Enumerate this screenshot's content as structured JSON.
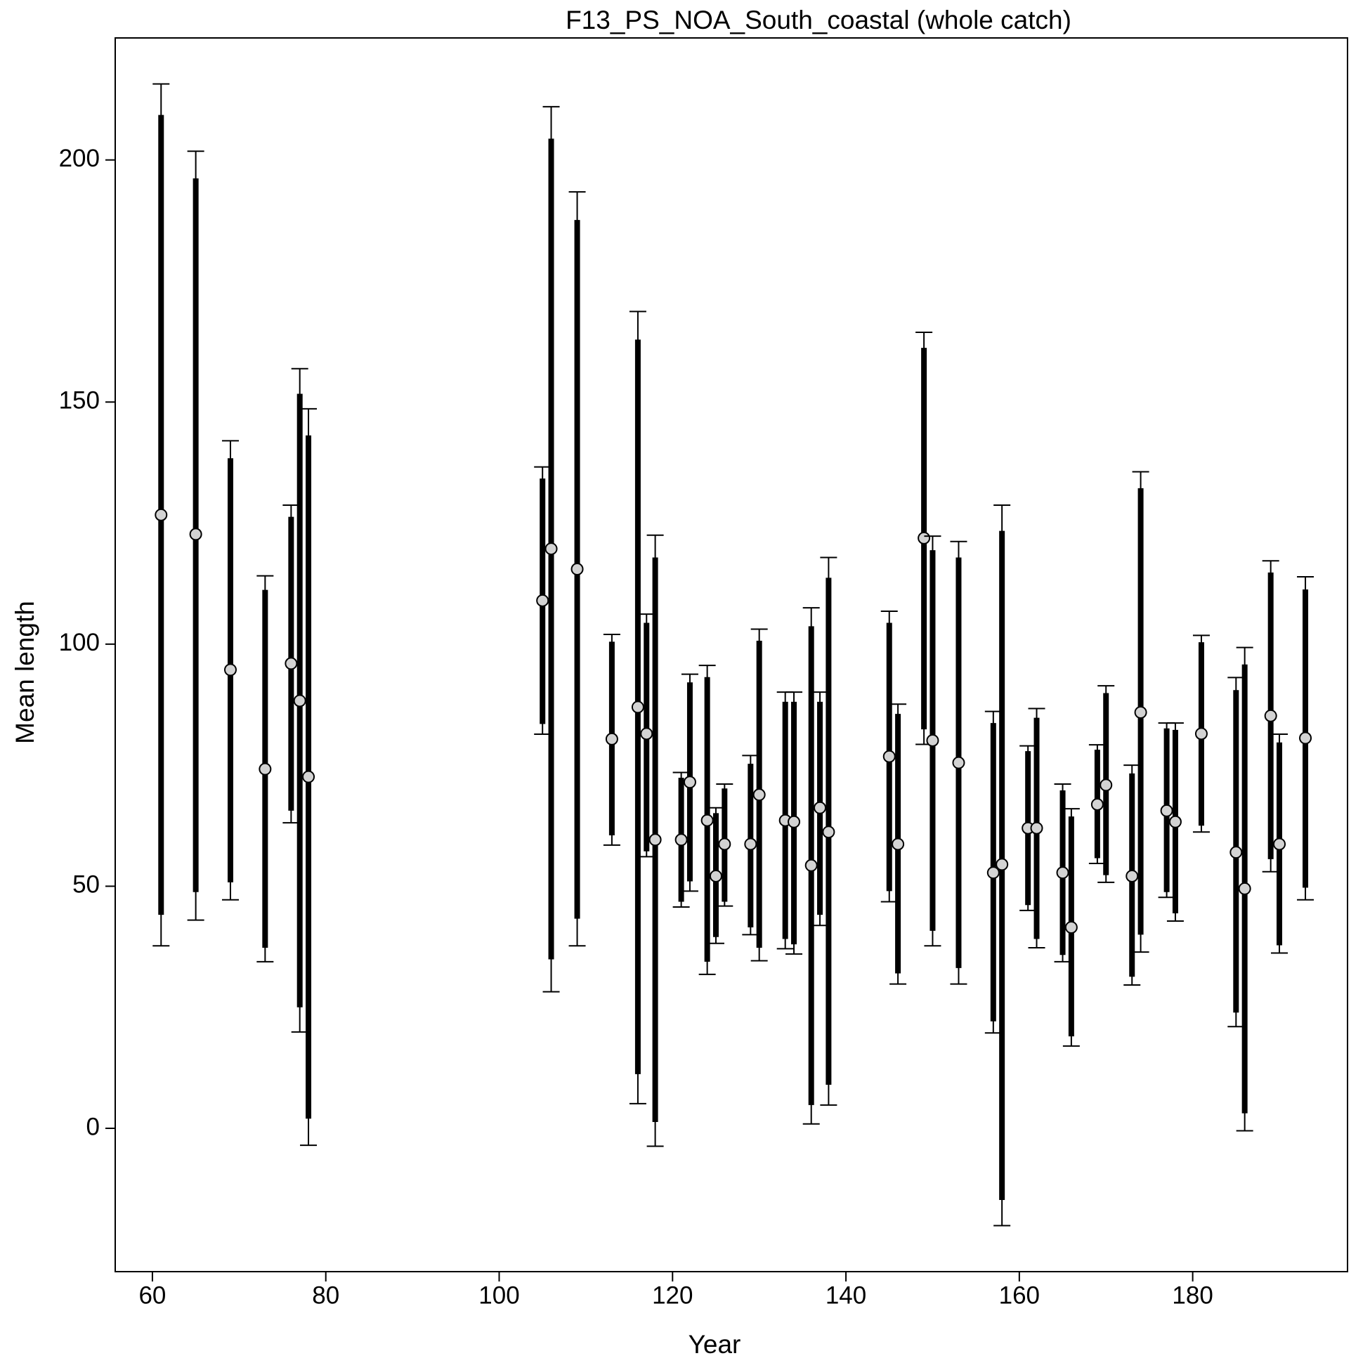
{
  "chart_data": {
    "type": "errorbar",
    "title": "F13_PS_NOA_South_coastal (whole catch)",
    "x_label": "Year",
    "y_label": "Mean length",
    "x": [
      61,
      65,
      69,
      73,
      76,
      77,
      78,
      105,
      106,
      109,
      113,
      116,
      117,
      118,
      121,
      122,
      124,
      125,
      126,
      129,
      130,
      133,
      134,
      136,
      137,
      138,
      145,
      146,
      149,
      150,
      153,
      157,
      158,
      161,
      162,
      165,
      166,
      169,
      170,
      173,
      174,
      177,
      178,
      181,
      185,
      186,
      189,
      190,
      193
    ],
    "values": [
      126.7,
      122.7,
      94.7,
      74.2,
      96.0,
      88.3,
      72.6,
      109.0,
      119.7,
      115.5,
      80.4,
      87.0,
      81.5,
      59.6,
      59.6,
      71.5,
      63.6,
      52.1,
      58.7,
      58.7,
      68.9,
      63.6,
      63.3,
      54.3,
      66.2,
      61.2,
      76.8,
      58.7,
      121.9,
      80.1,
      75.5,
      52.8,
      54.5,
      62.0,
      62.0,
      52.8,
      41.5,
      66.9,
      70.9,
      52.1,
      85.9,
      65.6,
      63.3,
      81.5,
      57.0,
      49.5,
      85.2,
      58.7,
      80.6
    ],
    "inner_upper": [
      209.3,
      196.2,
      138.4,
      111.2,
      126.3,
      151.7,
      143.1,
      134.2,
      204.4,
      187.6,
      100.5,
      162.9,
      104.4,
      117.9,
      72.4,
      92.1,
      93.2,
      65.1,
      70.2,
      75.3,
      100.7,
      88.1,
      88.1,
      103.7,
      88.1,
      113.7,
      104.4,
      85.6,
      161.2,
      119.4,
      117.9,
      83.7,
      123.4,
      77.9,
      84.8,
      69.8,
      64.4,
      78.2,
      89.9,
      73.3,
      132.2,
      82.6,
      82.3,
      100.4,
      90.5,
      95.8,
      114.8,
      79.7,
      111.3
    ],
    "inner_lower": [
      44.1,
      48.8,
      50.8,
      37.3,
      65.6,
      25.0,
      2.0,
      83.5,
      34.9,
      43.3,
      60.5,
      11.2,
      57.2,
      1.3,
      46.8,
      51.0,
      34.4,
      39.5,
      46.8,
      41.5,
      37.3,
      39.1,
      38.0,
      4.8,
      44.1,
      9.0,
      49.0,
      32.0,
      82.4,
      40.8,
      33.1,
      22.1,
      -14.8,
      46.1,
      39.1,
      35.8,
      19.0,
      55.8,
      52.3,
      31.3,
      40.0,
      48.8,
      44.4,
      62.5,
      23.9,
      3.1,
      55.6,
      37.8,
      49.7
    ],
    "outer_upper": [
      215.7,
      201.8,
      142.0,
      114.1,
      128.7,
      156.9,
      148.6,
      136.6,
      211.0,
      193.4,
      102.0,
      168.7,
      106.2,
      122.5,
      73.5,
      93.8,
      95.6,
      66.2,
      71.1,
      77.0,
      103.1,
      90.1,
      90.1,
      107.5,
      90.1,
      117.9,
      106.8,
      87.6,
      164.4,
      122.3,
      121.2,
      86.1,
      128.7,
      79.0,
      86.7,
      71.1,
      66.0,
      79.2,
      91.4,
      75.0,
      135.6,
      83.7,
      83.7,
      101.8,
      93.1,
      99.3,
      117.2,
      81.4,
      113.9
    ],
    "outer_lower": [
      37.7,
      43.0,
      47.2,
      34.4,
      63.1,
      19.9,
      -3.5,
      81.4,
      28.2,
      37.7,
      58.5,
      5.1,
      56.1,
      -3.7,
      45.7,
      49.0,
      31.8,
      38.2,
      45.9,
      40.0,
      34.6,
      37.1,
      36.0,
      0.9,
      41.9,
      4.8,
      46.8,
      29.8,
      79.3,
      37.7,
      29.8,
      19.7,
      -20.1,
      45.0,
      37.3,
      34.4,
      17.0,
      54.7,
      50.8,
      29.6,
      36.4,
      47.7,
      42.8,
      61.2,
      21.0,
      -0.5,
      53.0,
      36.2,
      47.2
    ],
    "xlim": [
      55.71,
      197.86
    ],
    "ylim": [
      -29.6,
      225.2
    ],
    "xticks": [
      60,
      80,
      100,
      120,
      140,
      160,
      180
    ],
    "yticks": [
      0,
      50,
      100,
      150,
      200
    ],
    "color": "#000000",
    "point_color": "#d3d3d3"
  }
}
